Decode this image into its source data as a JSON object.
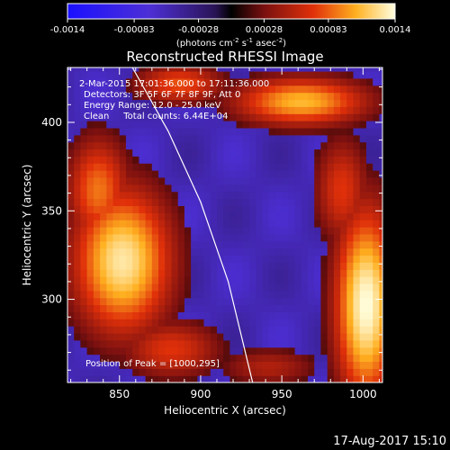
{
  "chart_data": {
    "type": "heatmap",
    "title": "Reconstructed RHESSI Image",
    "xlabel": "Heliocentric X (arcsec)",
    "ylabel": "Heliocentric Y (arcsec)",
    "xlim": [
      818,
      1012
    ],
    "ylim": [
      253,
      431
    ],
    "x_ticks": [
      850,
      900,
      950,
      1000
    ],
    "y_ticks": [
      300,
      350,
      400
    ],
    "colorbar": {
      "label_main": "(photons cm",
      "label_exp1": "-2",
      "label_mid": " s",
      "label_exp2": "-1",
      "label_mid2": " asec",
      "label_exp3": "-2",
      "label_end": ")",
      "range": [
        -0.0014,
        0.0014
      ],
      "ticks": [
        "-0.0014",
        "-0.00083",
        "-0.00028",
        "0.00028",
        "0.00083",
        "0.0014"
      ]
    },
    "annotations": {
      "time_range": "2-Mar-2015 17:01:36.000 to 17:11:36.000",
      "detectors": "Detectors: 3F 5F 6F 7F 8F 9F, Att 0",
      "energy": "Energy Range: 12.0 - 25.0 keV",
      "clean": "Clean     Total counts: 6.44E+04",
      "peak": "Position of Peak = [1000,295]"
    },
    "timestamp": "17-Aug-2017 15:10",
    "hot_regions": [
      {
        "x": 960,
        "y": 410,
        "value": 0.0011,
        "sx": 30,
        "sy": 10
      },
      {
        "x": 885,
        "y": 420,
        "value": 0.0008,
        "sx": 20,
        "sy": 8
      },
      {
        "x": 850,
        "y": 320,
        "value": 0.0013,
        "sx": 22,
        "sy": 30
      },
      {
        "x": 835,
        "y": 360,
        "value": 0.0009,
        "sx": 14,
        "sy": 22
      },
      {
        "x": 880,
        "y": 270,
        "value": 0.0007,
        "sx": 22,
        "sy": 12
      },
      {
        "x": 1000,
        "y": 295,
        "value": 0.0014,
        "sx": 14,
        "sy": 40
      },
      {
        "x": 985,
        "y": 360,
        "value": 0.0007,
        "sx": 12,
        "sy": 22
      },
      {
        "x": 940,
        "y": 260,
        "value": 0.0005,
        "sx": 22,
        "sy": 8
      }
    ],
    "limb_curve": [
      {
        "x": 858,
        "y": 431
      },
      {
        "x": 880,
        "y": 395
      },
      {
        "x": 900,
        "y": 355
      },
      {
        "x": 917,
        "y": 310
      },
      {
        "x": 932,
        "y": 253
      }
    ]
  }
}
